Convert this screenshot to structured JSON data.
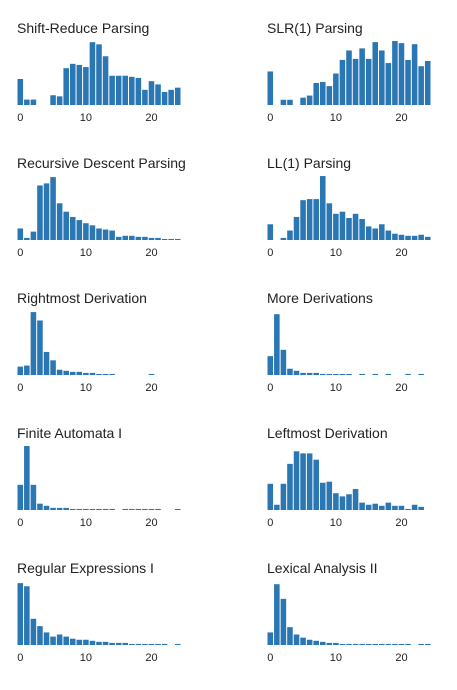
{
  "colors": {
    "bar": "#2a77b4",
    "text": "#222222"
  },
  "chart_data": [
    {
      "type": "bar",
      "title": "Shift-Reduce Parsing",
      "x": [
        0,
        1,
        2,
        3,
        4,
        5,
        6,
        7,
        8,
        9,
        10,
        11,
        12,
        13,
        14,
        15,
        16,
        17,
        18,
        19,
        20,
        21,
        22,
        23,
        24
      ],
      "values": [
        24,
        5,
        5,
        0,
        0,
        9,
        8,
        34,
        38,
        37,
        35,
        58,
        56,
        45,
        27,
        27,
        27,
        26,
        25,
        14,
        22,
        19,
        12,
        14,
        16
      ],
      "xticks": [
        0,
        10,
        20
      ],
      "xlim": [
        -0.5,
        24.5
      ],
      "ylim": [
        0,
        60
      ]
    },
    {
      "type": "bar",
      "title": "SLR(1) Parsing",
      "x": [
        0,
        1,
        2,
        3,
        4,
        5,
        6,
        7,
        8,
        9,
        10,
        11,
        12,
        13,
        14,
        15,
        16,
        17,
        18,
        19,
        20,
        21,
        22,
        23,
        24
      ],
      "values": [
        32,
        0,
        5,
        5,
        0,
        7,
        9,
        21,
        22,
        18,
        30,
        43,
        52,
        44,
        54,
        44,
        60,
        52,
        40,
        61,
        59,
        43,
        58,
        37,
        42
      ],
      "xticks": [
        0,
        10,
        20
      ],
      "xlim": [
        -0.5,
        24.5
      ],
      "ylim": [
        0,
        62
      ]
    },
    {
      "type": "bar",
      "title": "Recursive Descent Parsing",
      "x": [
        0,
        1,
        2,
        3,
        4,
        5,
        6,
        7,
        8,
        9,
        10,
        11,
        12,
        13,
        14,
        15,
        16,
        17,
        18,
        19,
        20,
        21,
        22,
        23,
        24
      ],
      "values": [
        11,
        2,
        8,
        52,
        54,
        60,
        35,
        27,
        22,
        19,
        16,
        14,
        11,
        10,
        9,
        3,
        4,
        4,
        3,
        3,
        2,
        2,
        1,
        1,
        1
      ],
      "xticks": [
        0,
        10,
        20
      ],
      "xlim": [
        -0.5,
        24.5
      ],
      "ylim": [
        0,
        62
      ]
    },
    {
      "type": "bar",
      "title": "LL(1) Parsing",
      "x": [
        0,
        1,
        2,
        3,
        4,
        5,
        6,
        7,
        8,
        9,
        10,
        11,
        12,
        13,
        14,
        15,
        16,
        17,
        18,
        19,
        20,
        21,
        22,
        23,
        24
      ],
      "values": [
        15,
        0,
        2,
        9,
        22,
        38,
        39,
        39,
        61,
        35,
        25,
        27,
        21,
        25,
        20,
        13,
        11,
        15,
        9,
        6,
        5,
        4,
        4,
        5,
        3
      ],
      "xticks": [
        0,
        10,
        20
      ],
      "xlim": [
        -0.5,
        24.5
      ],
      "ylim": [
        0,
        62
      ]
    },
    {
      "type": "bar",
      "title": "Rightmost Derivation",
      "x": [
        0,
        1,
        2,
        3,
        4,
        5,
        6,
        7,
        8,
        9,
        10,
        11,
        12,
        13,
        14,
        15,
        16,
        17,
        18,
        19,
        20,
        21,
        22,
        23,
        24
      ],
      "values": [
        8,
        9,
        60,
        52,
        22,
        14,
        5,
        4,
        3,
        3,
        2,
        2,
        1,
        1,
        1,
        0,
        0,
        0,
        0,
        0,
        1,
        0,
        0,
        0,
        0
      ],
      "xticks": [
        0,
        10,
        20
      ],
      "xlim": [
        -0.5,
        24.5
      ],
      "ylim": [
        0,
        62
      ]
    },
    {
      "type": "bar",
      "title": "More Derivations",
      "x": [
        0,
        1,
        2,
        3,
        4,
        5,
        6,
        7,
        8,
        9,
        10,
        11,
        12,
        13,
        14,
        15,
        16,
        17,
        18,
        19,
        20,
        21,
        22,
        23,
        24
      ],
      "values": [
        18,
        58,
        24,
        6,
        4,
        2,
        2,
        2,
        1,
        1,
        1,
        1,
        1,
        0,
        1,
        0,
        1,
        0,
        1,
        0,
        0,
        1,
        0,
        1,
        0
      ],
      "xticks": [
        0,
        10,
        20
      ],
      "xlim": [
        -0.5,
        24.5
      ],
      "ylim": [
        0,
        62
      ]
    },
    {
      "type": "bar",
      "title": "Finite Automata I",
      "x": [
        0,
        1,
        2,
        3,
        4,
        5,
        6,
        7,
        8,
        9,
        10,
        11,
        12,
        13,
        14,
        15,
        16,
        17,
        18,
        19,
        20,
        21,
        22,
        23,
        24
      ],
      "values": [
        24,
        61,
        24,
        6,
        4,
        2,
        2,
        2,
        1,
        1,
        1,
        1,
        1,
        1,
        1,
        0,
        1,
        1,
        1,
        1,
        1,
        1,
        0,
        0,
        1
      ],
      "xticks": [
        0,
        10,
        20
      ],
      "xlim": [
        -0.5,
        24.5
      ],
      "ylim": [
        0,
        62
      ]
    },
    {
      "type": "bar",
      "title": "Leftmost Derivation",
      "x": [
        0,
        1,
        2,
        3,
        4,
        5,
        6,
        7,
        8,
        9,
        10,
        11,
        12,
        13,
        14,
        15,
        16,
        17,
        18,
        19,
        20,
        21,
        22,
        23,
        24
      ],
      "values": [
        25,
        5,
        25,
        44,
        56,
        54,
        54,
        48,
        26,
        27,
        16,
        13,
        15,
        20,
        7,
        5,
        6,
        4,
        7,
        4,
        4,
        1,
        5,
        3,
        0
      ],
      "xticks": [
        0,
        10,
        20
      ],
      "xlim": [
        -0.5,
        24.5
      ],
      "ylim": [
        0,
        62
      ]
    },
    {
      "type": "bar",
      "title": "Regular Expressions I",
      "x": [
        0,
        1,
        2,
        3,
        4,
        5,
        6,
        7,
        8,
        9,
        10,
        11,
        12,
        13,
        14,
        15,
        16,
        17,
        18,
        19,
        20,
        21,
        22,
        23,
        24
      ],
      "values": [
        59,
        56,
        25,
        18,
        12,
        8,
        10,
        8,
        6,
        5,
        5,
        4,
        3,
        3,
        2,
        2,
        2,
        1,
        1,
        1,
        1,
        1,
        1,
        0,
        1
      ],
      "xticks": [
        0,
        10,
        20
      ],
      "xlim": [
        -0.5,
        24.5
      ],
      "ylim": [
        0,
        62
      ]
    },
    {
      "type": "bar",
      "title": "Lexical Analysis II",
      "x": [
        0,
        1,
        2,
        3,
        4,
        5,
        6,
        7,
        8,
        9,
        10,
        11,
        12,
        13,
        14,
        15,
        16,
        17,
        18,
        19,
        20,
        21,
        22,
        23,
        24
      ],
      "values": [
        12,
        58,
        44,
        17,
        10,
        7,
        5,
        4,
        3,
        2,
        2,
        1,
        1,
        1,
        1,
        1,
        1,
        1,
        1,
        1,
        1,
        1,
        0,
        1,
        1
      ],
      "xticks": [
        0,
        10,
        20
      ],
      "xlim": [
        -0.5,
        24.5
      ],
      "ylim": [
        0,
        62
      ]
    }
  ]
}
